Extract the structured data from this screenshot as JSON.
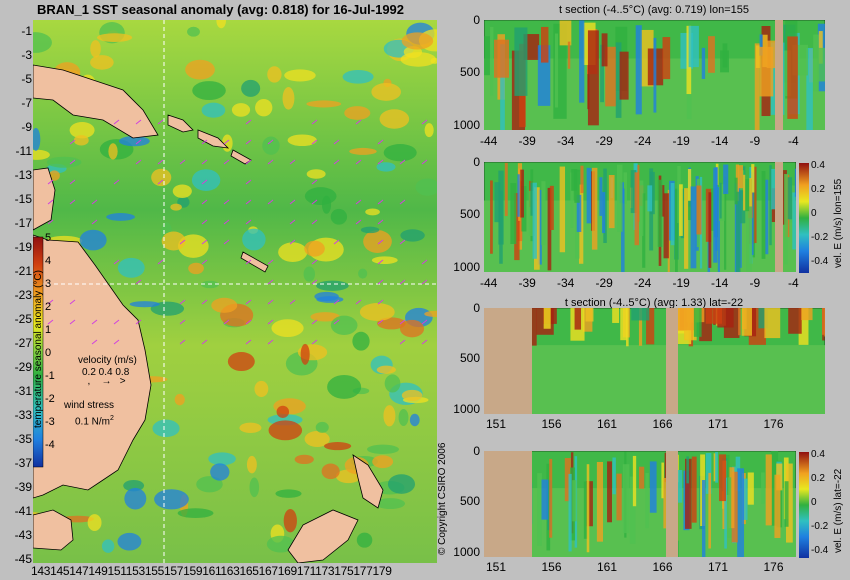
{
  "map": {
    "title": "BRAN_1 SST seasonal anomaly (avg: 0.818) for 16-Jul-1992",
    "y_ticks": [
      "-1",
      "-3",
      "-5",
      "-7",
      "-9",
      "-11",
      "-13",
      "-15",
      "-17",
      "-19",
      "-21",
      "-23",
      "-25",
      "-27",
      "-29",
      "-31",
      "-33",
      "-35",
      "-37",
      "-39",
      "-41",
      "-43",
      "-45"
    ],
    "x_tick_text": "143145147149151153155157159161163165167169171173175177179",
    "colorbar_label": "temperature seasonal anomaly (°C)",
    "colorbar_ticks": [
      "5",
      "4",
      "3",
      "2",
      "1",
      "0",
      "-1",
      "-2",
      "-3",
      "-4"
    ],
    "velocity_label": "velocity (m/s)",
    "velocity_scale": "0.2 0.4 0.8",
    "wind_label": "wind stress",
    "wind_scale": "0.1 N/m",
    "wind_scale_sup": "2",
    "copyright": "© Copyright CSIRO 2006"
  },
  "panels": {
    "p1": {
      "title": "t section (-4..5°C) (avg: 0.719) lon=155"
    },
    "p2": {
      "side_label": "vel. E (m/s) lon=155"
    },
    "p3": {
      "title": "t section (-4..5°C) (avg: 1.33) lat=-22"
    },
    "p4": {
      "side_label": "vel. E (m/s) lat=-22"
    },
    "depth_ticks": [
      "0",
      "500",
      "1000"
    ],
    "lat_ticks": [
      "-44",
      "-39",
      "-34",
      "-29",
      "-24",
      "-19",
      "-14",
      "-9",
      "-4"
    ],
    "lon_ticks": [
      "151",
      "156",
      "161",
      "166",
      "171",
      "176"
    ],
    "vel_cb_ticks": [
      "0.4",
      "0.2",
      "0",
      "-0.2",
      "-0.4"
    ]
  },
  "chart_data": [
    {
      "type": "heatmap",
      "title": "BRAN_1 SST seasonal anomaly (avg: 0.818) for 16-Jul-1992",
      "x": [
        143,
        145,
        147,
        149,
        151,
        153,
        155,
        157,
        159,
        161,
        163,
        165,
        167,
        169,
        171,
        173,
        175,
        177,
        179
      ],
      "y": [
        -1,
        -3,
        -5,
        -7,
        -9,
        -11,
        -13,
        -15,
        -17,
        -19,
        -21,
        -23,
        -25,
        -27,
        -29,
        -31,
        -33,
        -35,
        -37,
        -39,
        -41,
        -43,
        -45
      ],
      "xlim": [
        143,
        180
      ],
      "ylim": [
        -45,
        0
      ],
      "colorbar": {
        "label": "temperature seasonal anomaly (°C)",
        "range": [
          -4,
          5
        ]
      },
      "mean_value": 0.818,
      "date": "16-Jul-1992",
      "section_lines": {
        "lon": 155,
        "lat": -22
      },
      "annotations": [
        "velocity (m/s) 0.2 0.4 0.8",
        "wind stress 0.1 N/m2"
      ]
    },
    {
      "type": "heatmap",
      "title": "t section (-4..5°C) (avg: 0.719) lon=155",
      "x_ticks": [
        -44,
        -39,
        -34,
        -29,
        -24,
        -19,
        -14,
        -9,
        -4
      ],
      "x_range": [
        -45,
        0
      ],
      "y_ticks": [
        0,
        500,
        1000
      ],
      "y_range": [
        0,
        1050
      ],
      "y_inverted": true,
      "value_range": [
        -4,
        5
      ],
      "mean_value": 0.719
    },
    {
      "type": "heatmap",
      "title": "",
      "x_ticks": [
        -44,
        -39,
        -34,
        -29,
        -24,
        -19,
        -14,
        -9,
        -4
      ],
      "x_range": [
        -45,
        0
      ],
      "y_ticks": [
        0,
        500,
        1000
      ],
      "y_range": [
        0,
        1050
      ],
      "y_inverted": true,
      "colorbar": {
        "label": "vel. E (m/s) lon=155",
        "ticks": [
          0.4,
          0.2,
          0,
          -0.2,
          -0.4
        ]
      }
    },
    {
      "type": "heatmap",
      "title": "t section (-4..5°C) (avg: 1.33) lat=-22",
      "x_ticks": [
        151,
        156,
        161,
        166,
        171,
        176
      ],
      "x_range": [
        150,
        180
      ],
      "y_ticks": [
        0,
        500,
        1000
      ],
      "y_range": [
        0,
        1050
      ],
      "y_inverted": true,
      "value_range": [
        -4,
        5
      ],
      "mean_value": 1.33
    },
    {
      "type": "heatmap",
      "title": "",
      "x_ticks": [
        151,
        156,
        161,
        166,
        171,
        176
      ],
      "x_range": [
        150,
        180
      ],
      "y_ticks": [
        0,
        500,
        1000
      ],
      "y_range": [
        0,
        1050
      ],
      "y_inverted": true,
      "colorbar": {
        "label": "vel. E (m/s) lat=-22",
        "ticks": [
          0.4,
          0.2,
          0,
          -0.2,
          -0.4
        ]
      }
    }
  ]
}
